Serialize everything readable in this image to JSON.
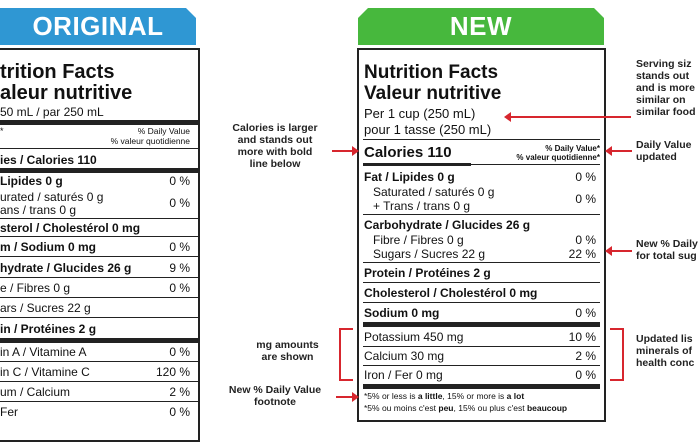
{
  "banners": {
    "original": "ORIGINAL",
    "new": "NEW"
  },
  "original_label": {
    "title1": "trition Facts",
    "title2": "aleur nutritive",
    "serving": "50 mL  / par 250 mL",
    "dv_head1": "% Daily Value",
    "dv_head2": "% valeur quotidienne",
    "rows": [
      {
        "name": "ies / Calories 110",
        "pct": ""
      },
      {
        "name": "Lipides 0 g",
        "pct": "0 %"
      },
      {
        "name": "urated / saturés 0 g",
        "pct": "0 %"
      },
      {
        "name": "ans / trans 0 g",
        "pct": ""
      },
      {
        "name": "sterol / Cholestérol 0 mg",
        "pct": ""
      },
      {
        "name": "m / Sodium 0 mg",
        "pct": "0 %"
      },
      {
        "name": "hydrate / Glucides 26 g",
        "pct": "9 %"
      },
      {
        "name": "e / Fibres 0 g",
        "pct": "0 %"
      },
      {
        "name": "ars / Sucres 22 g",
        "pct": ""
      },
      {
        "name": "in / Protéines 2 g",
        "pct": ""
      },
      {
        "name": "in A / Vitamine A",
        "pct": "0 %"
      },
      {
        "name": "in C / Vitamine C",
        "pct": "120 %"
      },
      {
        "name": "um / Calcium",
        "pct": "2 %"
      },
      {
        "name": "Fer",
        "pct": "0 %"
      }
    ]
  },
  "new_label": {
    "title1": "Nutrition Facts",
    "title2": "Valeur nutritive",
    "serving1": "Per 1 cup (250 mL)",
    "serving2": "pour 1 tasse (250 mL)",
    "calories": "Calories 110",
    "dv_head1": "% Daily Value*",
    "dv_head2": "% valeur quotidienne*",
    "fat": "Fat / Lipides 0 g",
    "fat_pct": "0 %",
    "sat": "Saturated / saturés 0 g",
    "trans": "+ Trans / trans 0 g",
    "sat_pct": "0 %",
    "carb": "Carbohydrate / Glucides 26 g",
    "fibre": "Fibre / Fibres 0 g",
    "fibre_pct": "0 %",
    "sugars": "Sugars / Sucres 22 g",
    "sugars_pct": "22 %",
    "protein": "Protein / Protéines 2 g",
    "cholesterol": "Cholesterol / Cholestérol 0 mg",
    "sodium": "Sodium 0 mg",
    "sodium_pct": "0 %",
    "potassium": "Potassium 450 mg",
    "potassium_pct": "10 %",
    "calcium": "Calcium 30 mg",
    "calcium_pct": "2 %",
    "iron": "Iron / Fer 0 mg",
    "iron_pct": "0 %",
    "foot1_a": "*5% or less is ",
    "foot1_b": "a little",
    "foot1_c": ", 15% or more is ",
    "foot1_d": "a lot",
    "foot2_a": "*5% ou moins c'est ",
    "foot2_b": "peu",
    "foot2_c": ", 15% ou plus c'est ",
    "foot2_d": "beaucoup"
  },
  "annotations": {
    "calories": [
      "Calories is larger",
      "and stands out",
      "more with bold",
      "line below"
    ],
    "mg": [
      "mg amounts",
      "are shown"
    ],
    "footnote": [
      "New % Daily Value",
      "footnote"
    ],
    "serving": [
      "Serving siz",
      "stands out",
      "and is more",
      "similar on",
      "similar food"
    ],
    "daily_value": [
      "Daily Value",
      "updated"
    ],
    "sugars": [
      "New % Daily",
      "for total sug"
    ],
    "minerals": [
      "Updated lis",
      "minerals of",
      "health conc"
    ]
  },
  "colors": {
    "original_banner": "#2f97d3",
    "new_banner": "#47b83d",
    "annotation_red": "#d7262e"
  }
}
